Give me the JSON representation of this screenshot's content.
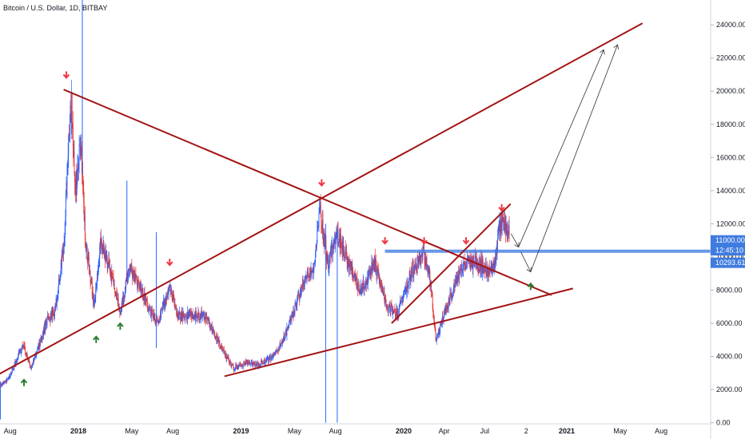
{
  "header": {
    "title": "Bitcoin / U.S. Dollar, 1D, BITBAY"
  },
  "colors": {
    "up": "#2962ff",
    "down": "#e53935",
    "trendline": "#a31515",
    "level": "#3f7be0",
    "arrow_down": "#f23645",
    "arrow_up": "#2e7d32",
    "projection": "#333333"
  },
  "chart_data": {
    "type": "candlestick",
    "title": "Bitcoin / U.S. Dollar, 1D, BITBAY",
    "ylim": [
      -500,
      25500
    ],
    "grid": false,
    "y_tick_labels": [
      "0.00",
      "2000.00",
      "4000.00",
      "6000.00",
      "8000.00",
      "10000.00",
      "12000.00",
      "14000.00",
      "16000.00",
      "18000.00",
      "20000.00",
      "22000.00",
      "24000.00"
    ],
    "y_ticks": [
      0,
      2000,
      4000,
      6000,
      8000,
      10000,
      12000,
      14000,
      16000,
      18000,
      20000,
      22000,
      24000
    ],
    "x_tick_labels": [
      {
        "label": "Aug",
        "date": "2017-08-01"
      },
      {
        "label": "2018",
        "date": "2018-01-01",
        "bold": true
      },
      {
        "label": "May",
        "date": "2018-05-01"
      },
      {
        "label": "Aug",
        "date": "2018-08-01"
      },
      {
        "label": "2019",
        "date": "2019-01-01",
        "bold": true
      },
      {
        "label": "May",
        "date": "2019-05-01"
      },
      {
        "label": "Aug",
        "date": "2019-08-01"
      },
      {
        "label": "2020",
        "date": "2020-01-01",
        "bold": true
      },
      {
        "label": "Apr",
        "date": "2020-04-01"
      },
      {
        "label": "Jul",
        "date": "2020-07-01"
      },
      {
        "label": "2",
        "date": "2020-10-02"
      },
      {
        "label": "2021",
        "date": "2021-01-01",
        "bold": true
      },
      {
        "label": "May",
        "date": "2021-05-01"
      },
      {
        "label": "Aug",
        "date": "2021-08-01"
      }
    ],
    "price_series": [
      [
        "2017-06-15",
        2500
      ],
      [
        "2017-07-15",
        2300
      ],
      [
        "2017-08-01",
        2800
      ],
      [
        "2017-08-20",
        4100
      ],
      [
        "2017-09-01",
        4700
      ],
      [
        "2017-09-15",
        3300
      ],
      [
        "2017-10-01",
        4300
      ],
      [
        "2017-10-20",
        6000
      ],
      [
        "2017-11-10",
        6800
      ],
      [
        "2017-11-29",
        10500
      ],
      [
        "2017-12-08",
        16000
      ],
      [
        "2017-12-17",
        19500
      ],
      [
        "2017-12-25",
        14000
      ],
      [
        "2018-01-06",
        17000
      ],
      [
        "2018-01-17",
        11000
      ],
      [
        "2018-02-06",
        7000
      ],
      [
        "2018-02-20",
        11000
      ],
      [
        "2018-03-10",
        9500
      ],
      [
        "2018-04-06",
        6600
      ],
      [
        "2018-04-25",
        9300
      ],
      [
        "2018-05-15",
        8500
      ],
      [
        "2018-06-10",
        6800
      ],
      [
        "2018-06-29",
        6000
      ],
      [
        "2018-07-25",
        8300
      ],
      [
        "2018-08-10",
        6400
      ],
      [
        "2018-09-15",
        6500
      ],
      [
        "2018-10-15",
        6400
      ],
      [
        "2018-11-20",
        4400
      ],
      [
        "2018-12-15",
        3300
      ],
      [
        "2019-01-15",
        3600
      ],
      [
        "2019-02-10",
        3500
      ],
      [
        "2019-03-15",
        4000
      ],
      [
        "2019-04-10",
        5200
      ],
      [
        "2019-05-15",
        8000
      ],
      [
        "2019-06-15",
        9500
      ],
      [
        "2019-06-26",
        13000
      ],
      [
        "2019-07-15",
        9500
      ],
      [
        "2019-08-05",
        11500
      ],
      [
        "2019-08-30",
        9600
      ],
      [
        "2019-09-24",
        8000
      ],
      [
        "2019-10-10",
        8500
      ],
      [
        "2019-10-26",
        9800
      ],
      [
        "2019-11-25",
        7000
      ],
      [
        "2019-12-18",
        6600
      ],
      [
        "2020-01-15",
        8800
      ],
      [
        "2020-02-13",
        10400
      ],
      [
        "2020-03-01",
        8600
      ],
      [
        "2020-03-13",
        5000
      ],
      [
        "2020-04-01",
        6500
      ],
      [
        "2020-04-30",
        8800
      ],
      [
        "2020-05-15",
        9500
      ],
      [
        "2020-06-10",
        9700
      ],
      [
        "2020-07-10",
        9200
      ],
      [
        "2020-07-26",
        10000
      ],
      [
        "2020-08-02",
        11800
      ],
      [
        "2020-08-15",
        12000
      ],
      [
        "2020-08-25",
        11500
      ]
    ],
    "spikes": [
      {
        "date": "2017-07-10",
        "low": 200,
        "high": 2500
      },
      {
        "date": "2018-01-10",
        "low": 15000,
        "high": 25500
      },
      {
        "date": "2018-04-20",
        "low": 8500,
        "high": 14600
      },
      {
        "date": "2018-06-25",
        "low": 4500,
        "high": 11500
      },
      {
        "date": "2019-07-10",
        "low": 0,
        "high": 12000
      },
      {
        "date": "2019-08-05",
        "low": 0,
        "high": 11500
      }
    ],
    "trendlines": [
      {
        "from": [
          "2017-06-28",
          2800
        ],
        "to": [
          "2021-06-20",
          24100
        ]
      },
      {
        "from": [
          "2017-11-29",
          20100
        ],
        "to": [
          "2020-11-28",
          7700
        ]
      },
      {
        "from": [
          "2018-11-25",
          2800
        ],
        "to": [
          "2021-01-15",
          8100
        ]
      },
      {
        "from": [
          "2019-12-05",
          6000
        ],
        "to": [
          "2020-08-28",
          13200
        ]
      }
    ],
    "horizontal_levels": [
      {
        "from_date": "2019-11-20",
        "y": 10400
      },
      {
        "from_date": "2019-11-20",
        "y": 10300
      }
    ],
    "projection_path": [
      {
        "from": [
          "2020-08-29",
          11400
        ],
        "to": [
          "2020-09-15",
          10600
        ]
      },
      {
        "from": [
          "2020-09-15",
          10600
        ],
        "to": [
          "2021-03-25",
          22500
        ]
      },
      {
        "from": [
          "2020-09-20",
          10300
        ],
        "to": [
          "2020-10-12",
          9100
        ]
      },
      {
        "from": [
          "2020-10-12",
          9100
        ],
        "to": [
          "2021-04-25",
          22800
        ]
      }
    ],
    "markers": [
      {
        "type": "down",
        "date": "2017-12-05",
        "y": 21000
      },
      {
        "type": "down",
        "date": "2018-07-25",
        "y": 9700
      },
      {
        "type": "down",
        "date": "2019-07-01",
        "y": 14500
      },
      {
        "type": "down",
        "date": "2019-11-20",
        "y": 11000
      },
      {
        "type": "down",
        "date": "2020-02-16",
        "y": 11000
      },
      {
        "type": "down",
        "date": "2020-05-20",
        "y": 11000
      },
      {
        "type": "down",
        "date": "2020-08-08",
        "y": 13000
      },
      {
        "type": "up",
        "date": "2017-09-01",
        "y": 2400
      },
      {
        "type": "up",
        "date": "2018-02-10",
        "y": 5000
      },
      {
        "type": "up",
        "date": "2018-04-05",
        "y": 5800
      },
      {
        "type": "up",
        "date": "2020-10-12",
        "y": 8200
      }
    ],
    "price_labels": [
      {
        "text": "11000.00",
        "y": 11000
      },
      {
        "text": "12:45:10",
        "y": 10400
      },
      {
        "text": "10293.61",
        "y": 9650
      }
    ]
  }
}
